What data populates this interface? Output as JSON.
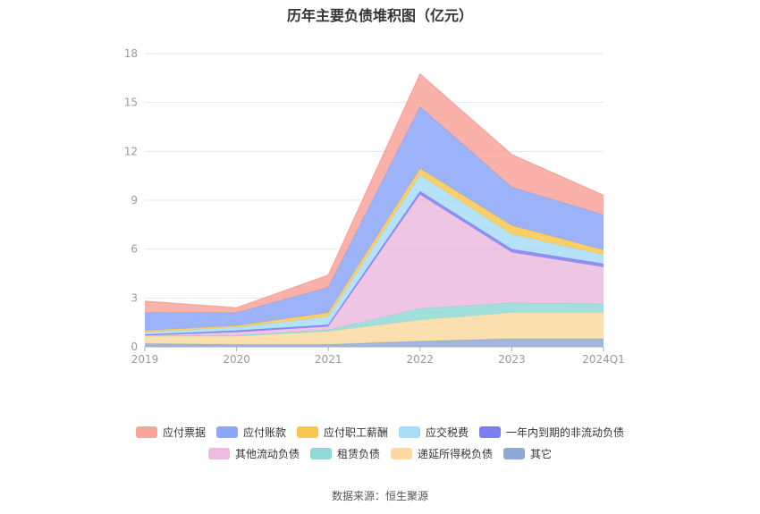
{
  "title": "历年主要负债堆积图（亿元）",
  "source": "数据来源：恒生聚源",
  "chart_data": {
    "type": "area",
    "stacked": true,
    "x": [
      "2019",
      "2020",
      "2021",
      "2022",
      "2023",
      "2024Q1"
    ],
    "yticks": [
      0,
      3,
      6,
      9,
      12,
      15,
      18
    ],
    "ylim": [
      0,
      18
    ],
    "grid": true,
    "legend_position": "bottom",
    "series": [
      {
        "name": "其它",
        "color": "#8fa9d6",
        "values": [
          0.2,
          0.15,
          0.15,
          0.35,
          0.5,
          0.5
        ]
      },
      {
        "name": "递延所得税负债",
        "color": "#fcd9a0",
        "values": [
          0.45,
          0.5,
          0.8,
          1.3,
          1.6,
          1.6
        ]
      },
      {
        "name": "租赁负债",
        "color": "#8fd9d6",
        "values": [
          0.05,
          0.05,
          0.1,
          0.7,
          0.6,
          0.55
        ]
      },
      {
        "name": "其他流动负债",
        "color": "#ebbcdf",
        "values": [
          0.0,
          0.2,
          0.2,
          7.0,
          3.1,
          2.25
        ]
      },
      {
        "name": "一年内到期的非流动负债",
        "color": "#7b7ef0",
        "values": [
          0.05,
          0.1,
          0.1,
          0.2,
          0.2,
          0.2
        ]
      },
      {
        "name": "应交税费",
        "color": "#a8ddf7",
        "values": [
          0.15,
          0.2,
          0.5,
          1.0,
          0.9,
          0.55
        ]
      },
      {
        "name": "应付职工薪酬",
        "color": "#f9c74f",
        "values": [
          0.1,
          0.1,
          0.25,
          0.4,
          0.55,
          0.3
        ]
      },
      {
        "name": "应付账款",
        "color": "#8ca6f8",
        "values": [
          1.1,
          0.8,
          1.55,
          3.8,
          2.35,
          2.15
        ]
      },
      {
        "name": "应付票据",
        "color": "#f9a39a",
        "values": [
          0.7,
          0.3,
          0.75,
          2.0,
          2.0,
          1.2
        ]
      }
    ]
  },
  "legend": {
    "rows": [
      [
        {
          "label": "应付票据",
          "color": "#f9a39a"
        },
        {
          "label": "应付账款",
          "color": "#8ca6f8"
        },
        {
          "label": "应付职工薪酬",
          "color": "#f9c74f"
        },
        {
          "label": "应交税费",
          "color": "#a8ddf7"
        },
        {
          "label": "一年内到期的非流动负债",
          "color": "#7b7ef0"
        }
      ],
      [
        {
          "label": "其他流动负债",
          "color": "#ebbcdf"
        },
        {
          "label": "租赁负债",
          "color": "#8fd9d6"
        },
        {
          "label": "递延所得税负债",
          "color": "#fcd9a0"
        },
        {
          "label": "其它",
          "color": "#8fa9d6"
        }
      ]
    ]
  }
}
